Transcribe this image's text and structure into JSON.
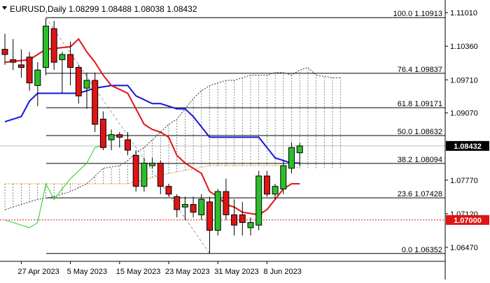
{
  "header": {
    "symbol": "EURUSD,Daily",
    "open": "1.08299",
    "high": "1.08488",
    "low": "1.08038",
    "close": "1.08432"
  },
  "colors": {
    "bull": "#2bbf2b",
    "bear": "#e01414",
    "tenkan": "#e01414",
    "kijun": "#1414e0",
    "chikou": "#22cc22",
    "span_a": "#d28c14",
    "span_b": "#333333",
    "fib": "#000000",
    "current_price_bg": "#000000",
    "support_bg": "#e01414"
  },
  "chart_data": {
    "type": "candlestick",
    "symbol": "EURUSD",
    "timeframe": "Daily",
    "price_axis": {
      "min": 1.062,
      "max": 1.112,
      "ticks": [
        "1.11010",
        "1.10360",
        "1.09710",
        "1.09070",
        "1.07770",
        "1.07120",
        "1.06470"
      ]
    },
    "x_axis_labels": [
      {
        "label": "27 Apr 2023",
        "index": 2
      },
      {
        "label": "5 May 2023",
        "index": 8
      },
      {
        "label": "15 May 2023",
        "index": 14
      },
      {
        "label": "23 May 2023",
        "index": 20
      },
      {
        "label": "31 May 2023",
        "index": 26
      },
      {
        "label": "8 Jun 2023",
        "index": 32
      }
    ],
    "candles": [
      {
        "o": 1.103,
        "h": 1.106,
        "l": 1.1,
        "c": 1.102
      },
      {
        "o": 1.101,
        "h": 1.105,
        "l": 1.099,
        "c": 1.1005
      },
      {
        "o": 1.1,
        "h": 1.103,
        "l": 1.0975,
        "c": 1.0995
      },
      {
        "o": 1.1015,
        "h": 1.1025,
        "l": 1.095,
        "c": 1.0965
      },
      {
        "o": 1.096,
        "h": 1.1005,
        "l": 1.092,
        "c": 1.099
      },
      {
        "o": 1.0995,
        "h": 1.109,
        "l": 1.098,
        "c": 1.1075
      },
      {
        "o": 1.107,
        "h": 1.1085,
        "l": 1.099,
        "c": 1.1005
      },
      {
        "o": 1.101,
        "h": 1.1025,
        "l": 1.0945,
        "c": 1.102
      },
      {
        "o": 1.102,
        "h": 1.1045,
        "l": 1.096,
        "c": 1.0995
      },
      {
        "o": 1.0995,
        "h": 1.1,
        "l": 1.0925,
        "c": 1.094
      },
      {
        "o": 1.0955,
        "h": 1.0985,
        "l": 1.0915,
        "c": 1.097
      },
      {
        "o": 1.097,
        "h": 1.0985,
        "l": 1.087,
        "c": 1.0885
      },
      {
        "o": 1.0895,
        "h": 1.091,
        "l": 1.0835,
        "c": 1.084
      },
      {
        "o": 1.0855,
        "h": 1.0875,
        "l": 1.0835,
        "c": 1.0865
      },
      {
        "o": 1.0865,
        "h": 1.087,
        "l": 1.084,
        "c": 1.086
      },
      {
        "o": 1.0855,
        "h": 1.087,
        "l": 1.0825,
        "c": 1.0835
      },
      {
        "o": 1.0825,
        "h": 1.0835,
        "l": 1.0755,
        "c": 1.0765
      },
      {
        "o": 1.0765,
        "h": 1.082,
        "l": 1.0755,
        "c": 1.081
      },
      {
        "o": 1.0805,
        "h": 1.082,
        "l": 1.08,
        "c": 1.081
      },
      {
        "o": 1.081,
        "h": 1.0815,
        "l": 1.075,
        "c": 1.0765
      },
      {
        "o": 1.0765,
        "h": 1.077,
        "l": 1.0745,
        "c": 1.075
      },
      {
        "o": 1.0745,
        "h": 1.075,
        "l": 1.0705,
        "c": 1.072
      },
      {
        "o": 1.0725,
        "h": 1.0745,
        "l": 1.07,
        "c": 1.073
      },
      {
        "o": 1.073,
        "h": 1.0745,
        "l": 1.0705,
        "c": 1.0715
      },
      {
        "o": 1.071,
        "h": 1.075,
        "l": 1.07,
        "c": 1.074
      },
      {
        "o": 1.0735,
        "h": 1.0745,
        "l": 1.0635,
        "c": 1.068
      },
      {
        "o": 1.068,
        "h": 1.076,
        "l": 1.067,
        "c": 1.0755
      },
      {
        "o": 1.0755,
        "h": 1.078,
        "l": 1.07,
        "c": 1.071
      },
      {
        "o": 1.071,
        "h": 1.074,
        "l": 1.067,
        "c": 1.069
      },
      {
        "o": 1.071,
        "h": 1.0735,
        "l": 1.067,
        "c": 1.0695
      },
      {
        "o": 1.0685,
        "h": 1.0705,
        "l": 1.067,
        "c": 1.0695
      },
      {
        "o": 1.069,
        "h": 1.0795,
        "l": 1.068,
        "c": 1.0785
      },
      {
        "o": 1.0785,
        "h": 1.0795,
        "l": 1.0745,
        "c": 1.075
      },
      {
        "o": 1.075,
        "h": 1.077,
        "l": 1.074,
        "c": 1.0765
      },
      {
        "o": 1.076,
        "h": 1.0815,
        "l": 1.075,
        "c": 1.0805
      },
      {
        "o": 1.08,
        "h": 1.085,
        "l": 1.079,
        "c": 1.084
      },
      {
        "o": 1.08299,
        "h": 1.08488,
        "l": 1.08038,
        "c": 1.08432
      }
    ],
    "tenkan": [
      [
        0,
        1.1005
      ],
      [
        3,
        1.101
      ],
      [
        5,
        1.103
      ],
      [
        8,
        1.1035
      ],
      [
        9,
        1.105
      ],
      [
        10,
        1.1025
      ],
      [
        11,
        1.1005
      ],
      [
        12,
        1.098
      ],
      [
        13,
        1.096
      ],
      [
        15,
        1.0945
      ],
      [
        16,
        1.0915
      ],
      [
        17,
        1.0885
      ],
      [
        18,
        1.0875
      ],
      [
        19,
        1.087
      ],
      [
        20,
        1.086
      ],
      [
        21,
        1.0825
      ],
      [
        22,
        1.081
      ],
      [
        23,
        1.08
      ],
      [
        24,
        1.079
      ],
      [
        25,
        1.0755
      ],
      [
        26,
        1.0745
      ],
      [
        27,
        1.073
      ],
      [
        28,
        1.0725
      ],
      [
        29,
        1.0715
      ],
      [
        31,
        1.071
      ],
      [
        32,
        1.072
      ],
      [
        33,
        1.074
      ],
      [
        34,
        1.076
      ],
      [
        35,
        1.077
      ],
      [
        36,
        1.077
      ]
    ],
    "kijun": [
      [
        0,
        1.089
      ],
      [
        2,
        1.09
      ],
      [
        3,
        1.093
      ],
      [
        4,
        1.0945
      ],
      [
        9,
        1.0945
      ],
      [
        11,
        1.0955
      ],
      [
        13,
        1.096
      ],
      [
        15,
        1.096
      ],
      [
        16,
        1.094
      ],
      [
        18,
        1.0925
      ],
      [
        19,
        1.0925
      ],
      [
        21,
        1.0915
      ],
      [
        22,
        1.0915
      ],
      [
        23,
        1.09
      ],
      [
        25,
        1.086
      ],
      [
        26,
        1.086
      ],
      [
        31,
        1.086
      ],
      [
        32,
        1.084
      ],
      [
        33,
        1.082
      ],
      [
        34,
        1.0815
      ],
      [
        35,
        1.081
      ],
      [
        36,
        1.081
      ]
    ],
    "chikou": [
      [
        0,
        1.07
      ],
      [
        2,
        1.069
      ],
      [
        3,
        1.0685
      ],
      [
        4,
        1.0695
      ],
      [
        5,
        1.077
      ],
      [
        6,
        1.074
      ],
      [
        7,
        1.076
      ],
      [
        8,
        1.078
      ],
      [
        9,
        1.0795
      ],
      [
        10,
        1.081
      ],
      [
        11,
        1.084
      ],
      [
        12,
        1.0845
      ]
    ],
    "span_a": [
      [
        0,
        1.077
      ],
      [
        5,
        1.077
      ],
      [
        10,
        1.077
      ],
      [
        15,
        1.077
      ],
      [
        20,
        1.079
      ],
      [
        25,
        1.0805
      ],
      [
        30,
        1.0805
      ],
      [
        35,
        1.0805
      ],
      [
        36,
        1.08
      ]
    ],
    "span_b": [
      [
        0,
        1.072
      ],
      [
        2,
        1.073
      ],
      [
        4,
        1.074
      ],
      [
        6,
        1.0745
      ],
      [
        8,
        1.0755
      ],
      [
        10,
        1.077
      ],
      [
        12,
        1.08
      ],
      [
        14,
        1.0805
      ],
      [
        15,
        1.0815
      ],
      [
        16,
        1.083
      ],
      [
        17,
        1.084
      ],
      [
        18,
        1.0855
      ],
      [
        19,
        1.087
      ],
      [
        20,
        1.0885
      ],
      [
        21,
        1.0895
      ],
      [
        22,
        1.0915
      ],
      [
        23,
        1.0935
      ],
      [
        24,
        1.095
      ],
      [
        25,
        1.096
      ],
      [
        26,
        1.0965
      ],
      [
        27,
        1.097
      ],
      [
        28,
        1.097
      ],
      [
        29,
        1.0975
      ],
      [
        30,
        1.098
      ],
      [
        31,
        1.098
      ],
      [
        32,
        1.098
      ],
      [
        33,
        1.0985
      ],
      [
        34,
        1.0985
      ],
      [
        35,
        1.098
      ],
      [
        36,
        1.099
      ],
      [
        37,
        1.0995
      ],
      [
        38,
        1.098
      ],
      [
        40,
        1.0975
      ],
      [
        41,
        1.0975
      ]
    ],
    "fibonacci": [
      {
        "label": "100.0 1.10913",
        "price": 1.10913
      },
      {
        "label": "76.4 1.09837",
        "price": 1.09837
      },
      {
        "label": "61.8 1.09171",
        "price": 1.09171
      },
      {
        "label": "50.0 1.08632",
        "price": 1.08632
      },
      {
        "label": "38.2 1.08094",
        "price": 1.08094
      },
      {
        "label": "23.6 1.07428",
        "price": 1.07428
      },
      {
        "label": "0.0 1.06352",
        "price": 1.06352
      }
    ],
    "fib_trendline": {
      "from_index": 5,
      "from_price": 1.10913,
      "to_index": 25,
      "to_price": 1.06352
    },
    "current_price": {
      "label": "1.08432",
      "price": 1.08432
    },
    "support_line": {
      "label": "1.07000",
      "price": 1.07
    }
  }
}
